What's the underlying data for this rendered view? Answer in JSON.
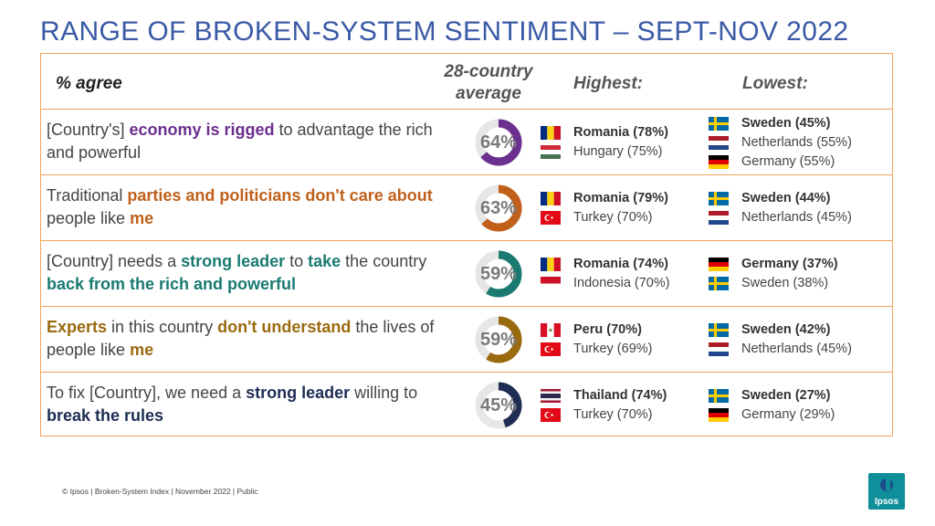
{
  "title": "RANGE OF BROKEN-SYSTEM SENTIMENT – SEPT-NOV 2022",
  "header": {
    "agree": "% agree",
    "avg_line1": "28-country",
    "avg_line2": "average",
    "highest": "Highest:",
    "lowest": "Lowest:"
  },
  "rows": [
    {
      "text": [
        {
          "t": "[Country's] ",
          "b": false
        },
        {
          "t": "economy is rigged",
          "b": true
        },
        {
          "t": " to advantage the rich and powerful",
          "b": false
        }
      ],
      "color": "#6b2f8e",
      "avg": "64%",
      "avg_value": 64,
      "highest": [
        {
          "label": "Romania (78%)",
          "flag": "romania",
          "bold": true
        },
        {
          "label": "Hungary (75%)",
          "flag": "hungary",
          "bold": false
        }
      ],
      "lowest": [
        {
          "label": "Sweden (45%)",
          "flag": "sweden",
          "bold": true
        },
        {
          "label": "Netherlands (55%)",
          "flag": "netherlands",
          "bold": false
        },
        {
          "label": " Germany (55%)",
          "flag": "germany",
          "bold": false
        }
      ]
    },
    {
      "text": [
        {
          "t": "Traditional ",
          "b": false
        },
        {
          "t": "parties and politicians don't care about",
          "b": true
        },
        {
          "t": " people like ",
          "b": false
        },
        {
          "t": "me",
          "b": true
        }
      ],
      "color": "#c0601a",
      "avg": "63%",
      "avg_value": 63,
      "highest": [
        {
          "label": "Romania (79%)",
          "flag": "romania",
          "bold": true
        },
        {
          "label": "Turkey (70%)",
          "flag": "turkey",
          "bold": false
        }
      ],
      "lowest": [
        {
          "label": "Sweden (44%)",
          "flag": "sweden",
          "bold": true
        },
        {
          "label": "Netherlands (45%)",
          "flag": "netherlands",
          "bold": false
        }
      ]
    },
    {
      "text": [
        {
          "t": "[Country] needs a ",
          "b": false
        },
        {
          "t": "strong leader",
          "b": true
        },
        {
          "t": " to ",
          "b": false
        },
        {
          "t": "take",
          "b": true
        },
        {
          "t": " the country ",
          "b": false
        },
        {
          "t": "back from the rich and powerful",
          "b": true
        }
      ],
      "color": "#1a7a72",
      "avg": "59%",
      "avg_value": 59,
      "highest": [
        {
          "label": "Romania (74%)",
          "flag": "romania",
          "bold": true
        },
        {
          "label": "Indonesia (70%)",
          "flag": "indonesia",
          "bold": false
        }
      ],
      "lowest": [
        {
          "label": "Germany (37%)",
          "flag": "germany",
          "bold": true
        },
        {
          "label": "Sweden (38%)",
          "flag": "sweden",
          "bold": false
        }
      ]
    },
    {
      "text": [
        {
          "t": "Experts",
          "b": true
        },
        {
          "t": " in this country ",
          "b": false
        },
        {
          "t": "don't understand",
          "b": true
        },
        {
          "t": " the lives of people like ",
          "b": false
        },
        {
          "t": "me",
          "b": true
        }
      ],
      "color": "#9a6a0f",
      "avg": "59%",
      "avg_value": 59,
      "highest": [
        {
          "label": "Peru (70%)",
          "flag": "peru",
          "bold": true
        },
        {
          "label": "Turkey (69%)",
          "flag": "turkey",
          "bold": false
        }
      ],
      "lowest": [
        {
          "label": "Sweden (42%)",
          "flag": "sweden",
          "bold": true
        },
        {
          "label": "Netherlands (45%)",
          "flag": "netherlands",
          "bold": false
        }
      ]
    },
    {
      "text": [
        {
          "t": "To fix [Country], we need a ",
          "b": false
        },
        {
          "t": "strong leader",
          "b": true
        },
        {
          "t": " willing to ",
          "b": false
        },
        {
          "t": "break the rules",
          "b": true
        }
      ],
      "color": "#1f2d55",
      "avg": "45%",
      "avg_value": 45,
      "highest": [
        {
          "label": "Thailand (74%)",
          "flag": "thailand",
          "bold": true
        },
        {
          "label": "Turkey (70%)",
          "flag": "turkey",
          "bold": false
        }
      ],
      "lowest": [
        {
          "label": "Sweden (27%)",
          "flag": "sweden",
          "bold": true
        },
        {
          "label": "Germany (29%)",
          "flag": "germany",
          "bold": false
        }
      ]
    }
  ],
  "footer": "© Ipsos | Broken-System Index | November 2022 | Public",
  "logo_text": "Ipsos"
}
